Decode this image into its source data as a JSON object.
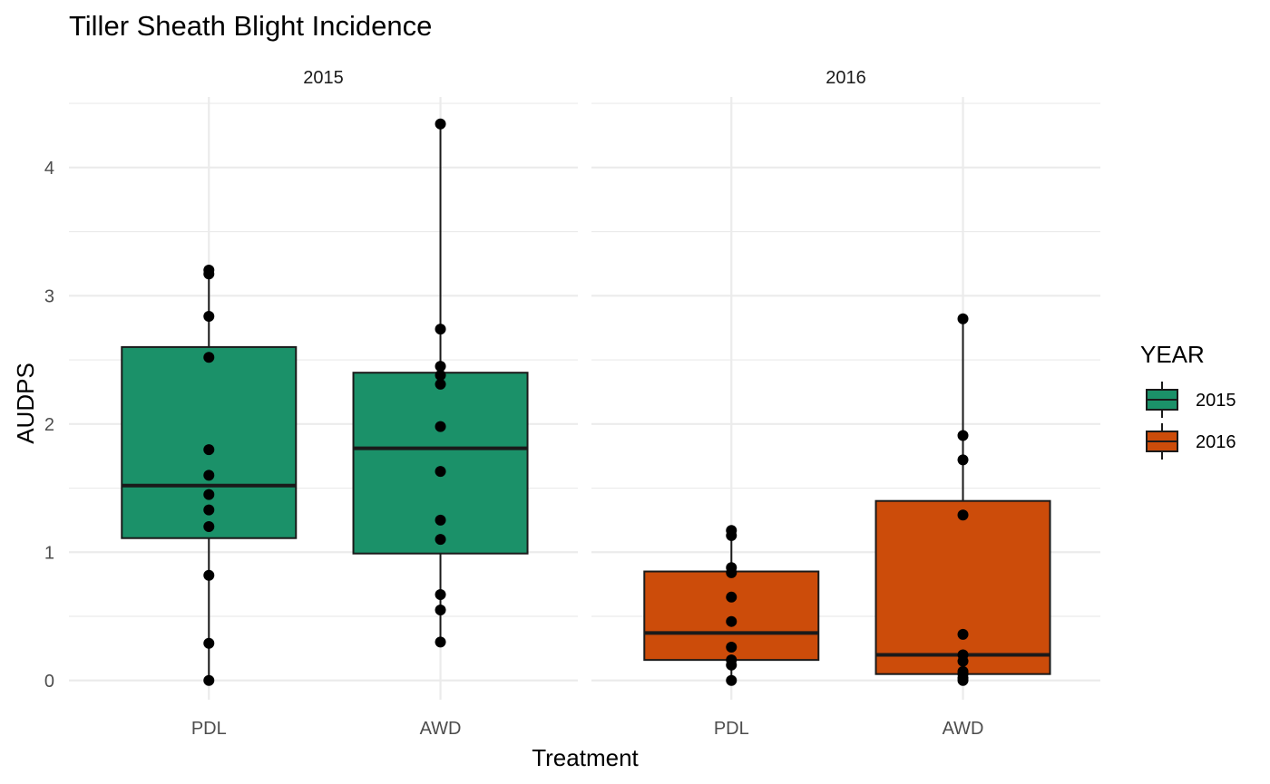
{
  "chart_data": {
    "type": "boxplot",
    "title": "Tiller Sheath Blight Incidence",
    "xlabel": "Treatment",
    "ylabel": "AUDPS",
    "ylim": [
      -0.15,
      4.55
    ],
    "yticks": [
      "0",
      "1",
      "2",
      "3",
      "4"
    ],
    "categories": [
      "PDL",
      "AWD"
    ],
    "grid": true,
    "legend": {
      "title": "YEAR",
      "position": "right",
      "items": [
        {
          "label": "2015",
          "color": "#1b9169"
        },
        {
          "label": "2016",
          "color": "#cc4c0a"
        }
      ]
    },
    "facets": [
      {
        "label": "2015",
        "color": "#1b9169",
        "groups": [
          {
            "category": "PDL",
            "box": {
              "min": 0.0,
              "q1": 1.11,
              "median": 1.52,
              "q3": 2.6,
              "max": 3.2
            },
            "points": [
              0.0,
              0.29,
              0.82,
              1.2,
              1.33,
              1.45,
              1.6,
              1.8,
              2.52,
              2.84,
              3.17,
              3.2
            ]
          },
          {
            "category": "AWD",
            "box": {
              "min": 0.3,
              "q1": 0.99,
              "median": 1.81,
              "q3": 2.4,
              "max": 4.34
            },
            "points": [
              0.3,
              0.55,
              0.67,
              1.1,
              1.25,
              1.63,
              1.98,
              2.31,
              2.38,
              2.45,
              2.74,
              4.34
            ]
          }
        ]
      },
      {
        "label": "2016",
        "color": "#cc4c0a",
        "groups": [
          {
            "category": "PDL",
            "box": {
              "min": 0.0,
              "q1": 0.16,
              "median": 0.37,
              "q3": 0.85,
              "max": 1.17
            },
            "points": [
              0.0,
              0.12,
              0.16,
              0.26,
              0.46,
              0.65,
              0.84,
              0.88,
              1.13,
              1.17
            ]
          },
          {
            "category": "AWD",
            "box": {
              "min": 0.0,
              "q1": 0.05,
              "median": 0.2,
              "q3": 1.4,
              "max": 2.82
            },
            "points": [
              0.0,
              0.02,
              0.05,
              0.07,
              0.15,
              0.2,
              0.36,
              1.29,
              1.72,
              1.91,
              2.82
            ]
          }
        ]
      }
    ]
  }
}
